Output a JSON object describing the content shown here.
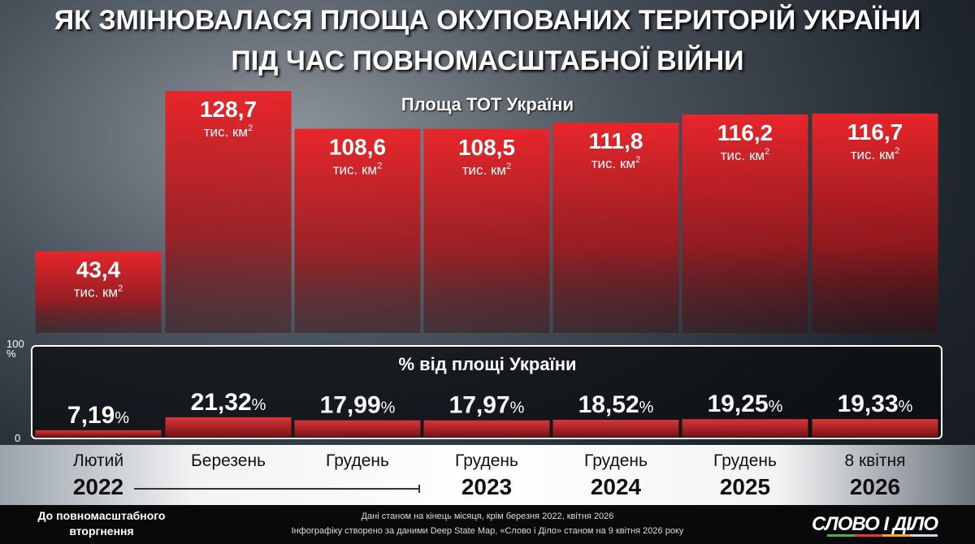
{
  "title_line1": "ЯК ЗМІНЮВАЛАСЯ ПЛОЩА ОКУПОВАНИХ ТЕРИТОРІЙ УКРАЇНИ",
  "title_line2": "ПІД ЧАС ПОВНОМАСШТАБНОЇ ВІЙНИ",
  "pre_war_label": "До повномасштабного вторгнення",
  "notes": [
    "Дані станом на кінець місяця, крім березня 2022, квітня 2026",
    "Інфографіку створено за даними Deep State Map, «Слово і Діло» станом на 9 квітня 2026 року"
  ],
  "logo": "СЛОВО І ДІЛО",
  "colors": {
    "bar": "#e0262b",
    "bar_dark": "#5a0a0c"
  },
  "chart_data": [
    {
      "type": "bar",
      "title": "Площа ТОТ України",
      "unit": "тис. км²",
      "unit_text": "тис. км",
      "unit_sup": "2",
      "categories": [
        {
          "month": "Лютий",
          "year": "2022"
        },
        {
          "month": "Березень",
          "year": ""
        },
        {
          "month": "Грудень",
          "year": ""
        },
        {
          "month": "Грудень",
          "year": "2023"
        },
        {
          "month": "Грудень",
          "year": "2024"
        },
        {
          "month": "Грудень",
          "year": "2025"
        },
        {
          "month": "8 квітня",
          "year": "2026"
        }
      ],
      "values": [
        43.4,
        128.7,
        108.6,
        108.5,
        111.8,
        116.2,
        116.7
      ],
      "labels": [
        "43,4",
        "128,7",
        "108,6",
        "108,5",
        "111,8",
        "116,2",
        "116,7"
      ]
    },
    {
      "type": "bar",
      "title": "% від площі України",
      "ylim": [
        0,
        100
      ],
      "yticks": [
        "0",
        "100 %"
      ],
      "values": [
        7.19,
        21.32,
        17.99,
        17.97,
        18.52,
        19.25,
        19.33
      ],
      "labels": [
        "7,19",
        "21,32",
        "17,99",
        "17,97",
        "18,52",
        "19,25",
        "19,33"
      ],
      "suffix": "%"
    }
  ]
}
